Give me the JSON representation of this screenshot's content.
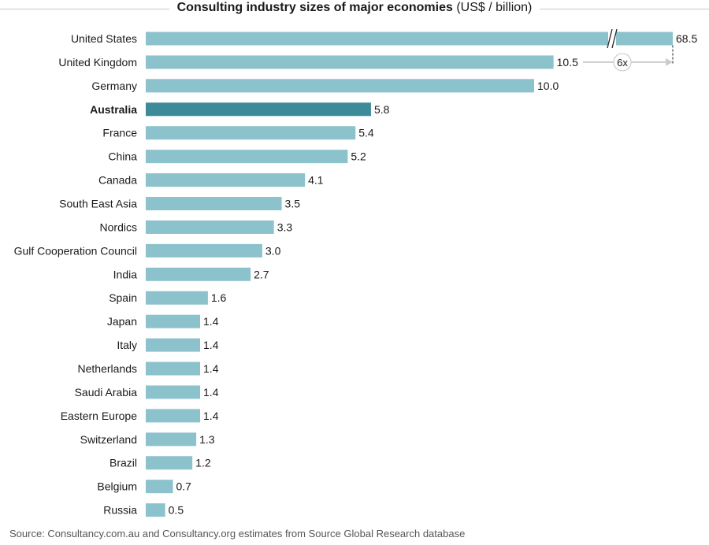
{
  "colors": {
    "bar": "#8bc2cc",
    "highlight": "#3d8b99",
    "text": "#1a1a1a",
    "source": "#555555",
    "annotation": "#cccccc"
  },
  "chart_data": {
    "type": "bar",
    "orientation": "horizontal",
    "title": "Consulting industry sizes of major economies",
    "title_units": "(US$ / billion)",
    "highlight": "Australia",
    "axis_break": {
      "category": "United States",
      "note": "bar truncated with break marks"
    },
    "annotation": {
      "label": "6x",
      "from": "United Kingdom",
      "to": "United States"
    },
    "categories": [
      "United States",
      "United Kingdom",
      "Germany",
      "Australia",
      "France",
      "China",
      "Canada",
      "South East Asia",
      "Nordics",
      "Gulf Cooperation Council",
      "India",
      "Spain",
      "Japan",
      "Italy",
      "Netherlands",
      "Saudi Arabia",
      "Eastern Europe",
      "Switzerland",
      "Brazil",
      "Belgium",
      "Russia"
    ],
    "values": [
      68.5,
      10.5,
      10.0,
      5.8,
      5.4,
      5.2,
      4.1,
      3.5,
      3.3,
      3.0,
      2.7,
      1.6,
      1.4,
      1.4,
      1.4,
      1.4,
      1.4,
      1.3,
      1.2,
      0.7,
      0.5
    ],
    "value_labels": [
      "68.5",
      "10.5",
      "10.0",
      "5.8",
      "5.4",
      "5.2",
      "4.1",
      "3.5",
      "3.3",
      "3.0",
      "2.7",
      "1.6",
      "1.4",
      "1.4",
      "1.4",
      "1.4",
      "1.4",
      "1.3",
      "1.2",
      "0.7",
      "0.5"
    ],
    "xlim": [
      0,
      10.5
    ],
    "grid": false,
    "legend": "none"
  },
  "source": "Source: Consultancy.com.au and Consultancy.org estimates from Source Global Research database"
}
